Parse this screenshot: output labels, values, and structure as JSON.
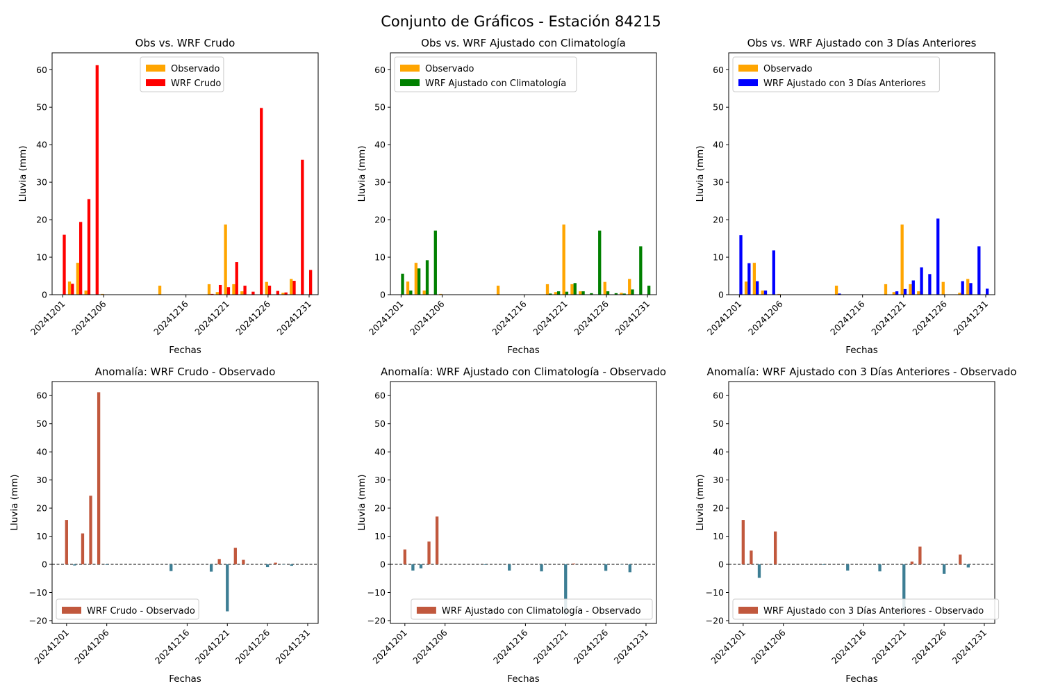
{
  "figure": {
    "title": "Conjunto de Gráficos - Estación 84215"
  },
  "colors": {
    "observado": "#ffa500",
    "wrf_crudo": "#ff0000",
    "wrf_clim": "#008000",
    "wrf_3dias": "#0000ff",
    "anomaly_positive": "#c1583d",
    "anomaly_negative": "#3d7e94"
  },
  "chart_data": [
    {
      "type": "bar",
      "title": "Obs vs. WRF Crudo",
      "xlabel": "Fechas",
      "ylabel": "Lluvia (mm)",
      "ylim": [
        0,
        64.5
      ],
      "yticks": [
        0,
        10,
        20,
        30,
        40,
        50,
        60
      ],
      "x_tick_labels": [
        "20241201",
        "20241206",
        "20241216",
        "20241221",
        "20241226",
        "20241231"
      ],
      "legend": "top-center",
      "categories": [
        "20241201",
        "20241202",
        "20241203",
        "20241204",
        "20241205",
        "20241206",
        "20241213",
        "20241219",
        "20241220",
        "20241221",
        "20241222",
        "20241223",
        "20241224",
        "20241225",
        "20241226",
        "20241227",
        "20241228",
        "20241229",
        "20241230",
        "20241231"
      ],
      "series": [
        {
          "name": "Observado",
          "color_key": "observado",
          "values": [
            0,
            3.5,
            8.5,
            1.1,
            0,
            0.2,
            2.4,
            2.8,
            0.7,
            18.7,
            2.8,
            0.9,
            0,
            0,
            3.4,
            0,
            0.5,
            4.2,
            0,
            0
          ]
        },
        {
          "name": "WRF Crudo",
          "color_key": "wrf_crudo",
          "values": [
            16,
            2.9,
            19.4,
            25.5,
            61.2,
            0,
            0,
            0.2,
            2.6,
            2,
            8.7,
            2.4,
            0.8,
            49.8,
            2.4,
            1,
            0.6,
            3.7,
            36,
            6.6
          ]
        }
      ]
    },
    {
      "type": "bar",
      "title": "Obs vs. WRF Ajustado con Climatología",
      "xlabel": "Fechas",
      "ylabel": "Lluvia (mm)",
      "ylim": [
        0,
        64.5
      ],
      "yticks": [
        0,
        10,
        20,
        30,
        40,
        50,
        60
      ],
      "x_tick_labels": [
        "20241201",
        "20241206",
        "20241216",
        "20241221",
        "20241226",
        "20241231"
      ],
      "legend": "top-left",
      "categories": [
        "20241201",
        "20241202",
        "20241203",
        "20241204",
        "20241205",
        "20241206",
        "20241213",
        "20241219",
        "20241220",
        "20241221",
        "20241222",
        "20241223",
        "20241224",
        "20241225",
        "20241226",
        "20241227",
        "20241228",
        "20241229",
        "20241230",
        "20241231"
      ],
      "series": [
        {
          "name": "Observado",
          "color_key": "observado",
          "values": [
            0,
            3.5,
            8.5,
            1.1,
            0,
            0.2,
            2.4,
            2.8,
            0.7,
            18.7,
            2.8,
            0.9,
            0,
            0,
            3.4,
            0,
            0.5,
            4.2,
            0,
            0
          ]
        },
        {
          "name": "WRF Ajustado con Climatología",
          "color_key": "wrf_clim",
          "values": [
            5.6,
            1.1,
            7,
            9.2,
            17.1,
            0,
            0,
            0.3,
            0.9,
            0.8,
            3.1,
            0.9,
            0.4,
            17.1,
            0.9,
            0.4,
            0.3,
            1.4,
            12.9,
            2.4
          ]
        }
      ]
    },
    {
      "type": "bar",
      "title": "Obs vs. WRF Ajustado con 3 Días Anteriores",
      "xlabel": "Fechas",
      "ylabel": "Lluvia (mm)",
      "ylim": [
        0,
        64.5
      ],
      "yticks": [
        0,
        10,
        20,
        30,
        40,
        50,
        60
      ],
      "x_tick_labels": [
        "20241201",
        "20241206",
        "20241216",
        "20241221",
        "20241226",
        "20241231"
      ],
      "legend": "top-left",
      "categories": [
        "20241201",
        "20241202",
        "20241203",
        "20241204",
        "20241205",
        "20241206",
        "20241213",
        "20241219",
        "20241220",
        "20241221",
        "20241222",
        "20241223",
        "20241224",
        "20241225",
        "20241226",
        "20241227",
        "20241228",
        "20241229",
        "20241230",
        "20241231"
      ],
      "series": [
        {
          "name": "Observado",
          "color_key": "observado",
          "values": [
            0,
            3.5,
            8.5,
            1.1,
            0,
            0.2,
            2.4,
            2.8,
            0.7,
            18.7,
            2.8,
            0.9,
            0,
            0,
            3.4,
            0,
            0.5,
            4.2,
            0,
            0
          ]
        },
        {
          "name": "WRF Ajustado con 3 Días Anteriores",
          "color_key": "wrf_3dias",
          "values": [
            15.9,
            8.4,
            3.6,
            1.1,
            11.8,
            0,
            0.3,
            0,
            0.9,
            1.5,
            3.8,
            7.3,
            5.5,
            20.3,
            0,
            0,
            3.6,
            3.1,
            12.9,
            1.6
          ]
        }
      ]
    },
    {
      "type": "bar",
      "title": "Anomalía: WRF Crudo - Observado",
      "xlabel": "Fechas",
      "ylabel": "Lluvia (mm)",
      "ylim": [
        -21,
        65
      ],
      "yticks": [
        -20,
        -10,
        0,
        10,
        20,
        30,
        40,
        50,
        60
      ],
      "x_tick_labels": [
        "20241201",
        "20241206",
        "20241216",
        "20241221",
        "20241226",
        "20241231"
      ],
      "legend": "bottom-left",
      "zero_line": true,
      "categories": [
        "20241201",
        "20241202",
        "20241203",
        "20241204",
        "20241205",
        "20241206",
        "20241214",
        "20241219",
        "20241220",
        "20241221",
        "20241222",
        "20241223",
        "20241226",
        "20241227",
        "20241228",
        "20241229"
      ],
      "series": [
        {
          "name": "WRF Crudo - Observado",
          "values": [
            15.8,
            -0.4,
            11,
            24.4,
            61.2,
            -0.2,
            -2.4,
            -2.6,
            1.9,
            -16.7,
            5.9,
            1.6,
            -1,
            0.6,
            -0.1,
            -0.5
          ]
        }
      ]
    },
    {
      "type": "bar",
      "title": "Anomalía: WRF Ajustado con Climatología - Observado",
      "xlabel": "Fechas",
      "ylabel": "Lluvia (mm)",
      "ylim": [
        -21,
        65
      ],
      "yticks": [
        -20,
        -10,
        0,
        10,
        20,
        30,
        40,
        50,
        60
      ],
      "x_tick_labels": [
        "20241201",
        "20241206",
        "20241216",
        "20241221",
        "20241226",
        "20241231"
      ],
      "legend": "bottom-right",
      "zero_line": true,
      "categories": [
        "20241201",
        "20241202",
        "20241203",
        "20241204",
        "20241205",
        "20241211",
        "20241214",
        "20241218",
        "20241221",
        "20241222",
        "20241226",
        "20241228",
        "20241229"
      ],
      "series": [
        {
          "name": "WRF Ajustado con Climatología - Observado",
          "values": [
            5.3,
            -2.2,
            -1.4,
            8.1,
            17,
            -0.2,
            -2.2,
            -2.5,
            -17.9,
            0.3,
            -2.3,
            -0.1,
            -2.8
          ]
        }
      ]
    },
    {
      "type": "bar",
      "title": "Anomalía: WRF Ajustado con 3 Días Anteriores - Observado",
      "xlabel": "Fechas",
      "ylabel": "Lluvia (mm)",
      "ylim": [
        -21,
        65
      ],
      "yticks": [
        -20,
        -10,
        0,
        10,
        20,
        30,
        40,
        50,
        60
      ],
      "x_tick_labels": [
        "20241201",
        "20241206",
        "20241216",
        "20241221",
        "20241226",
        "20241231"
      ],
      "legend": "bottom-right",
      "zero_line": true,
      "categories": [
        "20241201",
        "20241202",
        "20241203",
        "20241204",
        "20241205",
        "20241211",
        "20241214",
        "20241218",
        "20241221",
        "20241222",
        "20241223",
        "20241226",
        "20241228",
        "20241229"
      ],
      "series": [
        {
          "name": "WRF Ajustado con 3 Días Anteriores - Observado",
          "values": [
            15.8,
            4.9,
            -4.8,
            0.1,
            11.7,
            -0.2,
            -2.2,
            -2.5,
            -17.2,
            1,
            6.3,
            -3.4,
            3.5,
            -1.1
          ]
        }
      ]
    }
  ]
}
